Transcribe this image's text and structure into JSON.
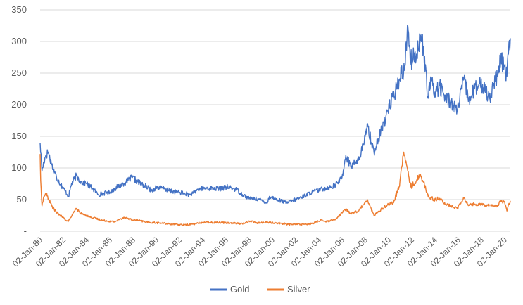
{
  "chart_data": {
    "type": "line",
    "title": "",
    "xlabel": "",
    "ylabel": "",
    "x_range": [
      "1980-01-02",
      "2020-06-30"
    ],
    "ylim": [
      0,
      350
    ],
    "y_ticks": [
      {
        "value": 0,
        "label": "-"
      },
      {
        "value": 50,
        "label": "50"
      },
      {
        "value": 100,
        "label": "100"
      },
      {
        "value": 150,
        "label": "150"
      },
      {
        "value": 200,
        "label": "200"
      },
      {
        "value": 250,
        "label": "250"
      },
      {
        "value": 300,
        "label": "300"
      },
      {
        "value": 350,
        "label": "350"
      }
    ],
    "x_ticks": [
      {
        "date": "1980-01-02",
        "label": "02-Jan-80"
      },
      {
        "date": "1982-01-02",
        "label": "02-Jan-82"
      },
      {
        "date": "1984-01-02",
        "label": "02-Jan-84"
      },
      {
        "date": "1986-01-02",
        "label": "02-Jan-86"
      },
      {
        "date": "1988-01-02",
        "label": "02-Jan-88"
      },
      {
        "date": "1990-01-02",
        "label": "02-Jan-90"
      },
      {
        "date": "1992-01-02",
        "label": "02-Jan-92"
      },
      {
        "date": "1994-01-02",
        "label": "02-Jan-94"
      },
      {
        "date": "1996-01-02",
        "label": "02-Jan-96"
      },
      {
        "date": "1998-01-02",
        "label": "02-Jan-98"
      },
      {
        "date": "2000-01-02",
        "label": "02-Jan-00"
      },
      {
        "date": "2002-01-02",
        "label": "02-Jan-02"
      },
      {
        "date": "2004-01-02",
        "label": "02-Jan-04"
      },
      {
        "date": "2006-01-02",
        "label": "02-Jan-06"
      },
      {
        "date": "2008-01-02",
        "label": "02-Jan-08"
      },
      {
        "date": "2010-01-02",
        "label": "02-Jan-10"
      },
      {
        "date": "2012-01-02",
        "label": "02-Jan-12"
      },
      {
        "date": "2014-01-02",
        "label": "02-Jan-14"
      },
      {
        "date": "2016-01-02",
        "label": "02-Jan-16"
      },
      {
        "date": "2018-01-02",
        "label": "02-Jan-18"
      },
      {
        "date": "2020-01-02",
        "label": "02-Jan-20"
      }
    ],
    "grid": "horizontal",
    "legend_position": "bottom",
    "series": [
      {
        "name": "Gold",
        "color": "#4472C4",
        "points": [
          [
            "1980-01-02",
            140
          ],
          [
            "1980-03-01",
            95
          ],
          [
            "1980-05-01",
            110
          ],
          [
            "1980-07-01",
            120
          ],
          [
            "1980-09-15",
            125
          ],
          [
            "1981-01-01",
            105
          ],
          [
            "1981-06-01",
            85
          ],
          [
            "1981-12-01",
            70
          ],
          [
            "1982-06-15",
            55
          ],
          [
            "1982-09-15",
            75
          ],
          [
            "1983-02-15",
            88
          ],
          [
            "1983-07-01",
            78
          ],
          [
            "1984-01-01",
            75
          ],
          [
            "1984-07-01",
            68
          ],
          [
            "1985-01-01",
            58
          ],
          [
            "1985-07-01",
            60
          ],
          [
            "1986-01-01",
            62
          ],
          [
            "1986-09-01",
            70
          ],
          [
            "1987-06-01",
            78
          ],
          [
            "1987-12-01",
            85
          ],
          [
            "1988-06-01",
            78
          ],
          [
            "1989-01-01",
            72
          ],
          [
            "1989-09-01",
            64
          ],
          [
            "1990-01-01",
            70
          ],
          [
            "1990-09-01",
            67
          ],
          [
            "1991-06-01",
            63
          ],
          [
            "1992-06-01",
            60
          ],
          [
            "1993-01-01",
            57
          ],
          [
            "1993-08-01",
            66
          ],
          [
            "1994-06-01",
            68
          ],
          [
            "1995-06-01",
            67
          ],
          [
            "1996-02-01",
            70
          ],
          [
            "1996-12-01",
            66
          ],
          [
            "1997-06-01",
            58
          ],
          [
            "1998-01-01",
            52
          ],
          [
            "1998-10-01",
            51
          ],
          [
            "1999-08-01",
            45
          ],
          [
            "1999-10-01",
            55
          ],
          [
            "2000-06-01",
            50
          ],
          [
            "2001-04-01",
            45
          ],
          [
            "2002-01-01",
            50
          ],
          [
            "2002-09-01",
            55
          ],
          [
            "2003-06-01",
            62
          ],
          [
            "2004-06-01",
            67
          ],
          [
            "2005-06-01",
            72
          ],
          [
            "2006-01-01",
            85
          ],
          [
            "2006-05-01",
            120
          ],
          [
            "2006-10-01",
            103
          ],
          [
            "2007-06-01",
            112
          ],
          [
            "2007-12-01",
            140
          ],
          [
            "2008-03-01",
            170
          ],
          [
            "2008-10-01",
            125
          ],
          [
            "2009-06-01",
            160
          ],
          [
            "2009-12-01",
            190
          ],
          [
            "2010-06-01",
            210
          ],
          [
            "2010-12-01",
            240
          ],
          [
            "2011-06-01",
            260
          ],
          [
            "2011-09-01",
            325
          ],
          [
            "2011-12-01",
            270
          ],
          [
            "2012-06-01",
            280
          ],
          [
            "2012-10-01",
            310
          ],
          [
            "2013-01-01",
            290
          ],
          [
            "2013-06-01",
            210
          ],
          [
            "2013-09-01",
            240
          ],
          [
            "2014-01-01",
            220
          ],
          [
            "2014-06-01",
            230
          ],
          [
            "2014-12-01",
            210
          ],
          [
            "2015-06-01",
            205
          ],
          [
            "2015-12-01",
            190
          ],
          [
            "2016-07-01",
            240
          ],
          [
            "2016-12-01",
            210
          ],
          [
            "2017-06-01",
            225
          ],
          [
            "2017-12-01",
            230
          ],
          [
            "2018-06-01",
            225
          ],
          [
            "2018-09-01",
            210
          ],
          [
            "2019-01-01",
            230
          ],
          [
            "2019-06-01",
            245
          ],
          [
            "2019-09-01",
            270
          ],
          [
            "2020-01-01",
            260
          ],
          [
            "2020-03-15",
            245
          ],
          [
            "2020-05-01",
            280
          ],
          [
            "2020-06-30",
            305
          ]
        ]
      },
      {
        "name": "Silver",
        "color": "#ED7D31",
        "points": [
          [
            "1980-01-02",
            122
          ],
          [
            "1980-01-20",
            80
          ],
          [
            "1980-03-01",
            40
          ],
          [
            "1980-05-01",
            55
          ],
          [
            "1980-07-01",
            60
          ],
          [
            "1981-01-01",
            40
          ],
          [
            "1981-06-01",
            30
          ],
          [
            "1982-06-01",
            15
          ],
          [
            "1983-02-15",
            36
          ],
          [
            "1983-07-01",
            28
          ],
          [
            "1984-06-01",
            22
          ],
          [
            "1985-06-01",
            17
          ],
          [
            "1986-06-01",
            15
          ],
          [
            "1987-04-01",
            22
          ],
          [
            "1987-12-01",
            18
          ],
          [
            "1988-06-01",
            17
          ],
          [
            "1989-06-01",
            14
          ],
          [
            "1990-06-01",
            13
          ],
          [
            "1991-06-01",
            11
          ],
          [
            "1992-06-01",
            10
          ],
          [
            "1993-06-01",
            12
          ],
          [
            "1994-01-01",
            14
          ],
          [
            "1995-06-01",
            14
          ],
          [
            "1996-06-01",
            13
          ],
          [
            "1997-06-01",
            12
          ],
          [
            "1998-02-01",
            16
          ],
          [
            "1998-10-01",
            13
          ],
          [
            "1999-06-01",
            14
          ],
          [
            "2000-06-01",
            13
          ],
          [
            "2001-06-01",
            11
          ],
          [
            "2002-06-01",
            11
          ],
          [
            "2003-06-01",
            12
          ],
          [
            "2004-04-01",
            18
          ],
          [
            "2004-08-01",
            15
          ],
          [
            "2005-06-01",
            18
          ],
          [
            "2006-05-01",
            35
          ],
          [
            "2006-10-01",
            28
          ],
          [
            "2007-06-01",
            32
          ],
          [
            "2008-03-01",
            50
          ],
          [
            "2008-10-01",
            25
          ],
          [
            "2009-06-01",
            35
          ],
          [
            "2009-12-01",
            42
          ],
          [
            "2010-06-01",
            45
          ],
          [
            "2010-12-01",
            70
          ],
          [
            "2011-04-25",
            125
          ],
          [
            "2011-09-01",
            95
          ],
          [
            "2011-12-01",
            70
          ],
          [
            "2012-06-01",
            80
          ],
          [
            "2012-10-01",
            90
          ],
          [
            "2013-01-01",
            78
          ],
          [
            "2013-06-01",
            55
          ],
          [
            "2014-01-01",
            50
          ],
          [
            "2014-06-01",
            52
          ],
          [
            "2014-12-01",
            42
          ],
          [
            "2015-06-01",
            40
          ],
          [
            "2015-12-01",
            36
          ],
          [
            "2016-07-01",
            52
          ],
          [
            "2016-12-01",
            42
          ],
          [
            "2017-06-01",
            43
          ],
          [
            "2018-06-01",
            42
          ],
          [
            "2019-06-01",
            40
          ],
          [
            "2019-09-01",
            48
          ],
          [
            "2020-01-01",
            46
          ],
          [
            "2020-03-15",
            32
          ],
          [
            "2020-05-01",
            42
          ],
          [
            "2020-06-30",
            48
          ]
        ]
      }
    ]
  }
}
